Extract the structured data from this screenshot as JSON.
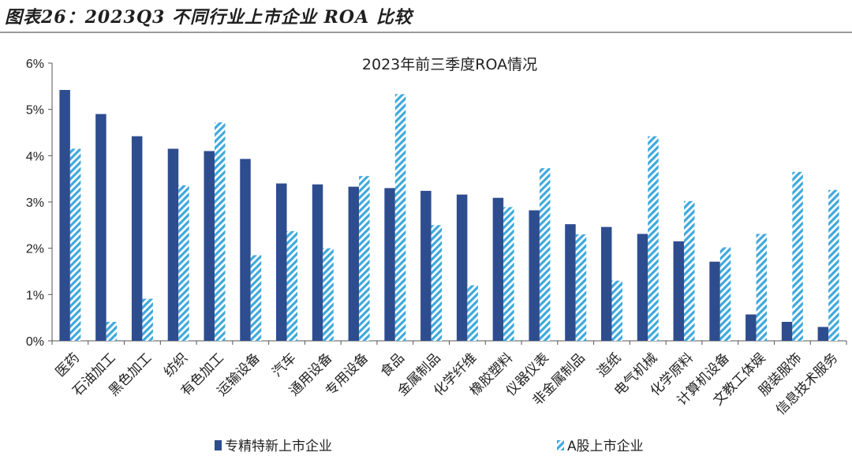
{
  "figure_title": "图表26：2023Q3 不同行业上市企业 ROA 比较",
  "chart_data": {
    "type": "bar",
    "title": "2023年前三季度ROA情况",
    "xlabel": "",
    "ylabel": "",
    "ylim": [
      0,
      6
    ],
    "yticks": [
      "0%",
      "1%",
      "2%",
      "3%",
      "4%",
      "5%",
      "6%"
    ],
    "categories": [
      "医药",
      "石油加工",
      "黑色加工",
      "纺织",
      "有色加工",
      "运输设备",
      "汽车",
      "通用设备",
      "专用设备",
      "食品",
      "金属制品",
      "化学纤维",
      "橡胶塑料",
      "仪器仪表",
      "非金属制品",
      "造纸",
      "电气机械",
      "化学原料",
      "计算机设备",
      "文教工体娱",
      "服装服饰",
      "信息技术服务"
    ],
    "series": [
      {
        "name": "专精特新上市企业",
        "color": "#2e4d8f",
        "pattern": "solid",
        "values": [
          5.42,
          4.9,
          4.42,
          4.15,
          4.1,
          3.93,
          3.4,
          3.38,
          3.33,
          3.3,
          3.24,
          3.16,
          3.09,
          2.82,
          2.52,
          2.46,
          2.31,
          2.15,
          1.71,
          0.57,
          0.41,
          0.3
        ]
      },
      {
        "name": "A股上市企业",
        "color": "#3fa9dc",
        "pattern": "hatched",
        "values": [
          4.15,
          0.41,
          0.91,
          3.36,
          4.72,
          1.85,
          2.37,
          2.0,
          3.56,
          5.33,
          2.5,
          1.2,
          2.89,
          3.73,
          2.3,
          1.3,
          4.42,
          3.02,
          2.02,
          2.31,
          3.65,
          3.26
        ]
      }
    ],
    "grid": false,
    "legend": "bottom"
  }
}
